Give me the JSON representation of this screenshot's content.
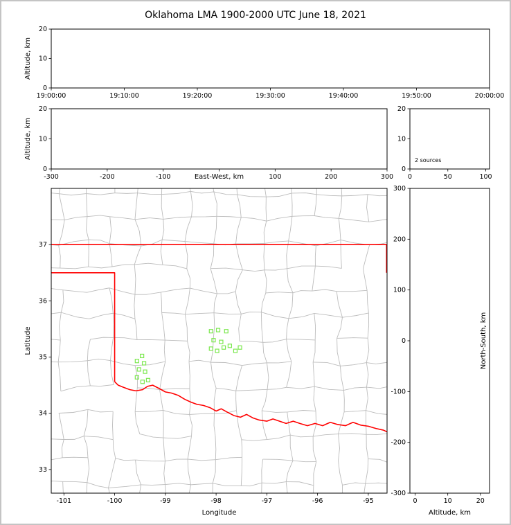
{
  "title": "Oklahoma LMA 1900-2000 UTC June 18, 2021",
  "colors": {
    "state_border": "#ff0000",
    "county_lines": "#bcbcbc",
    "source_marker": "#7ce84f",
    "axis": "#000000",
    "background": "#ffffff"
  },
  "chart_data": [
    {
      "id": "time-height",
      "type": "scatter",
      "xlabel": "",
      "ylabel": "Altitude, km",
      "xlim": [
        0,
        3600
      ],
      "ylim": [
        0,
        20
      ],
      "xticks": {
        "values": [
          0,
          600,
          1200,
          1800,
          2400,
          3000,
          3600
        ],
        "labels": [
          "19:00:00",
          "19:10:00",
          "19:20:00",
          "19:30:00",
          "19:40:00",
          "19:50:00",
          "20:00:00"
        ]
      },
      "yticks": {
        "values": [
          0,
          10,
          20
        ],
        "labels": [
          "0",
          "10",
          "20"
        ]
      },
      "points": []
    },
    {
      "id": "ew-height",
      "type": "scatter",
      "xlabel_inline": "East-West, km",
      "ylabel": "Altitude, km",
      "xlim": [
        -300,
        300
      ],
      "ylim": [
        0,
        20
      ],
      "xticks": {
        "values": [
          -300,
          -200,
          -100,
          0,
          100,
          200,
          300
        ],
        "labels": [
          "-300",
          "-200",
          "-100",
          "",
          "100",
          "200",
          "300"
        ]
      },
      "yticks": {
        "values": [
          0,
          10,
          20
        ],
        "labels": [
          "0",
          "10",
          "20"
        ]
      },
      "points": []
    },
    {
      "id": "alt-histogram",
      "type": "histogram",
      "annotation": "2 sources",
      "xlim": [
        0,
        105
      ],
      "ylim": [
        0,
        20
      ],
      "xticks": {
        "values": [
          0,
          50,
          100
        ],
        "labels": [
          "0",
          "50",
          "100"
        ]
      },
      "yticks": {
        "values": [
          0,
          10,
          20
        ],
        "labels": [
          "0",
          "10",
          "20"
        ]
      },
      "points": []
    },
    {
      "id": "map",
      "type": "scatter",
      "xlabel": "Longitude",
      "ylabel": "Latitude",
      "xlim": [
        -101.25,
        -94.63
      ],
      "ylim": [
        32.58,
        38.0
      ],
      "xticks": {
        "values": [
          -101,
          -100,
          -99,
          -98,
          -97,
          -96,
          -95
        ],
        "labels": [
          "-101",
          "-100",
          "-99",
          "-98",
          "-97",
          "-96",
          "-95"
        ]
      },
      "yticks": {
        "values": [
          33,
          34,
          35,
          36,
          37
        ],
        "labels": [
          "33",
          "34",
          "35",
          "36",
          "37"
        ]
      },
      "basemap_note": "gray county boundaries; red Oklahoma state border",
      "state_outline": [
        [
          [
            -101.25,
            37.0
          ],
          [
            -94.63,
            37.0
          ]
        ],
        [
          [
            -94.64,
            37.0
          ],
          [
            -94.64,
            36.5
          ]
        ],
        [
          [
            -101.25,
            36.5
          ],
          [
            -100.0,
            36.5
          ],
          [
            -100.0,
            34.563
          ]
        ],
        [
          [
            -100.0,
            34.563
          ],
          [
            -99.93,
            34.5
          ],
          [
            -99.82,
            34.46
          ],
          [
            -99.7,
            34.42
          ],
          [
            -99.58,
            34.4
          ],
          [
            -99.45,
            34.42
          ],
          [
            -99.35,
            34.48
          ],
          [
            -99.25,
            34.5
          ],
          [
            -99.12,
            34.44
          ],
          [
            -99.0,
            34.38
          ],
          [
            -98.88,
            34.36
          ],
          [
            -98.75,
            34.32
          ],
          [
            -98.62,
            34.25
          ],
          [
            -98.5,
            34.2
          ],
          [
            -98.38,
            34.16
          ],
          [
            -98.25,
            34.14
          ],
          [
            -98.12,
            34.1
          ],
          [
            -98.0,
            34.04
          ],
          [
            -97.9,
            34.08
          ],
          [
            -97.78,
            34.02
          ],
          [
            -97.65,
            33.96
          ],
          [
            -97.52,
            33.93
          ],
          [
            -97.4,
            33.98
          ],
          [
            -97.28,
            33.92
          ],
          [
            -97.15,
            33.88
          ],
          [
            -97.0,
            33.86
          ],
          [
            -96.88,
            33.9
          ],
          [
            -96.75,
            33.86
          ],
          [
            -96.62,
            33.82
          ],
          [
            -96.48,
            33.86
          ],
          [
            -96.35,
            33.82
          ],
          [
            -96.2,
            33.78
          ],
          [
            -96.05,
            33.82
          ],
          [
            -95.9,
            33.78
          ],
          [
            -95.75,
            33.84
          ],
          [
            -95.6,
            33.8
          ],
          [
            -95.45,
            33.78
          ],
          [
            -95.3,
            33.84
          ],
          [
            -95.15,
            33.79
          ],
          [
            -95.0,
            33.77
          ],
          [
            -94.85,
            33.73
          ],
          [
            -94.7,
            33.7
          ],
          [
            -94.63,
            33.67
          ]
        ]
      ],
      "points": [
        [
          -98.1,
          35.46
        ],
        [
          -97.96,
          35.48
        ],
        [
          -97.8,
          35.46
        ],
        [
          -98.05,
          35.3
        ],
        [
          -97.9,
          35.27
        ],
        [
          -98.1,
          35.15
        ],
        [
          -97.98,
          35.11
        ],
        [
          -97.85,
          35.17
        ],
        [
          -97.73,
          35.2
        ],
        [
          -97.62,
          35.11
        ],
        [
          -97.53,
          35.17
        ],
        [
          -99.46,
          35.02
        ],
        [
          -99.56,
          34.93
        ],
        [
          -99.42,
          34.89
        ],
        [
          -99.52,
          34.78
        ],
        [
          -99.4,
          34.74
        ],
        [
          -99.56,
          34.64
        ],
        [
          -99.45,
          34.56
        ],
        [
          -99.34,
          34.59
        ]
      ]
    },
    {
      "id": "ns-height",
      "type": "scatter",
      "xlabel": "Altitude, km",
      "ylabel_right": "North-South, km",
      "xlim": [
        -1.6,
        22.8
      ],
      "ylim": [
        -300,
        300
      ],
      "xticks": {
        "values": [
          0,
          10,
          20
        ],
        "labels": [
          "0",
          "10",
          "20"
        ]
      },
      "yticks": {
        "values": [
          300,
          200,
          100,
          0,
          -100,
          -200,
          -300
        ],
        "labels": [
          "300",
          "200",
          "100",
          "0",
          "-100",
          "-200",
          "-300"
        ]
      },
      "points": []
    }
  ]
}
